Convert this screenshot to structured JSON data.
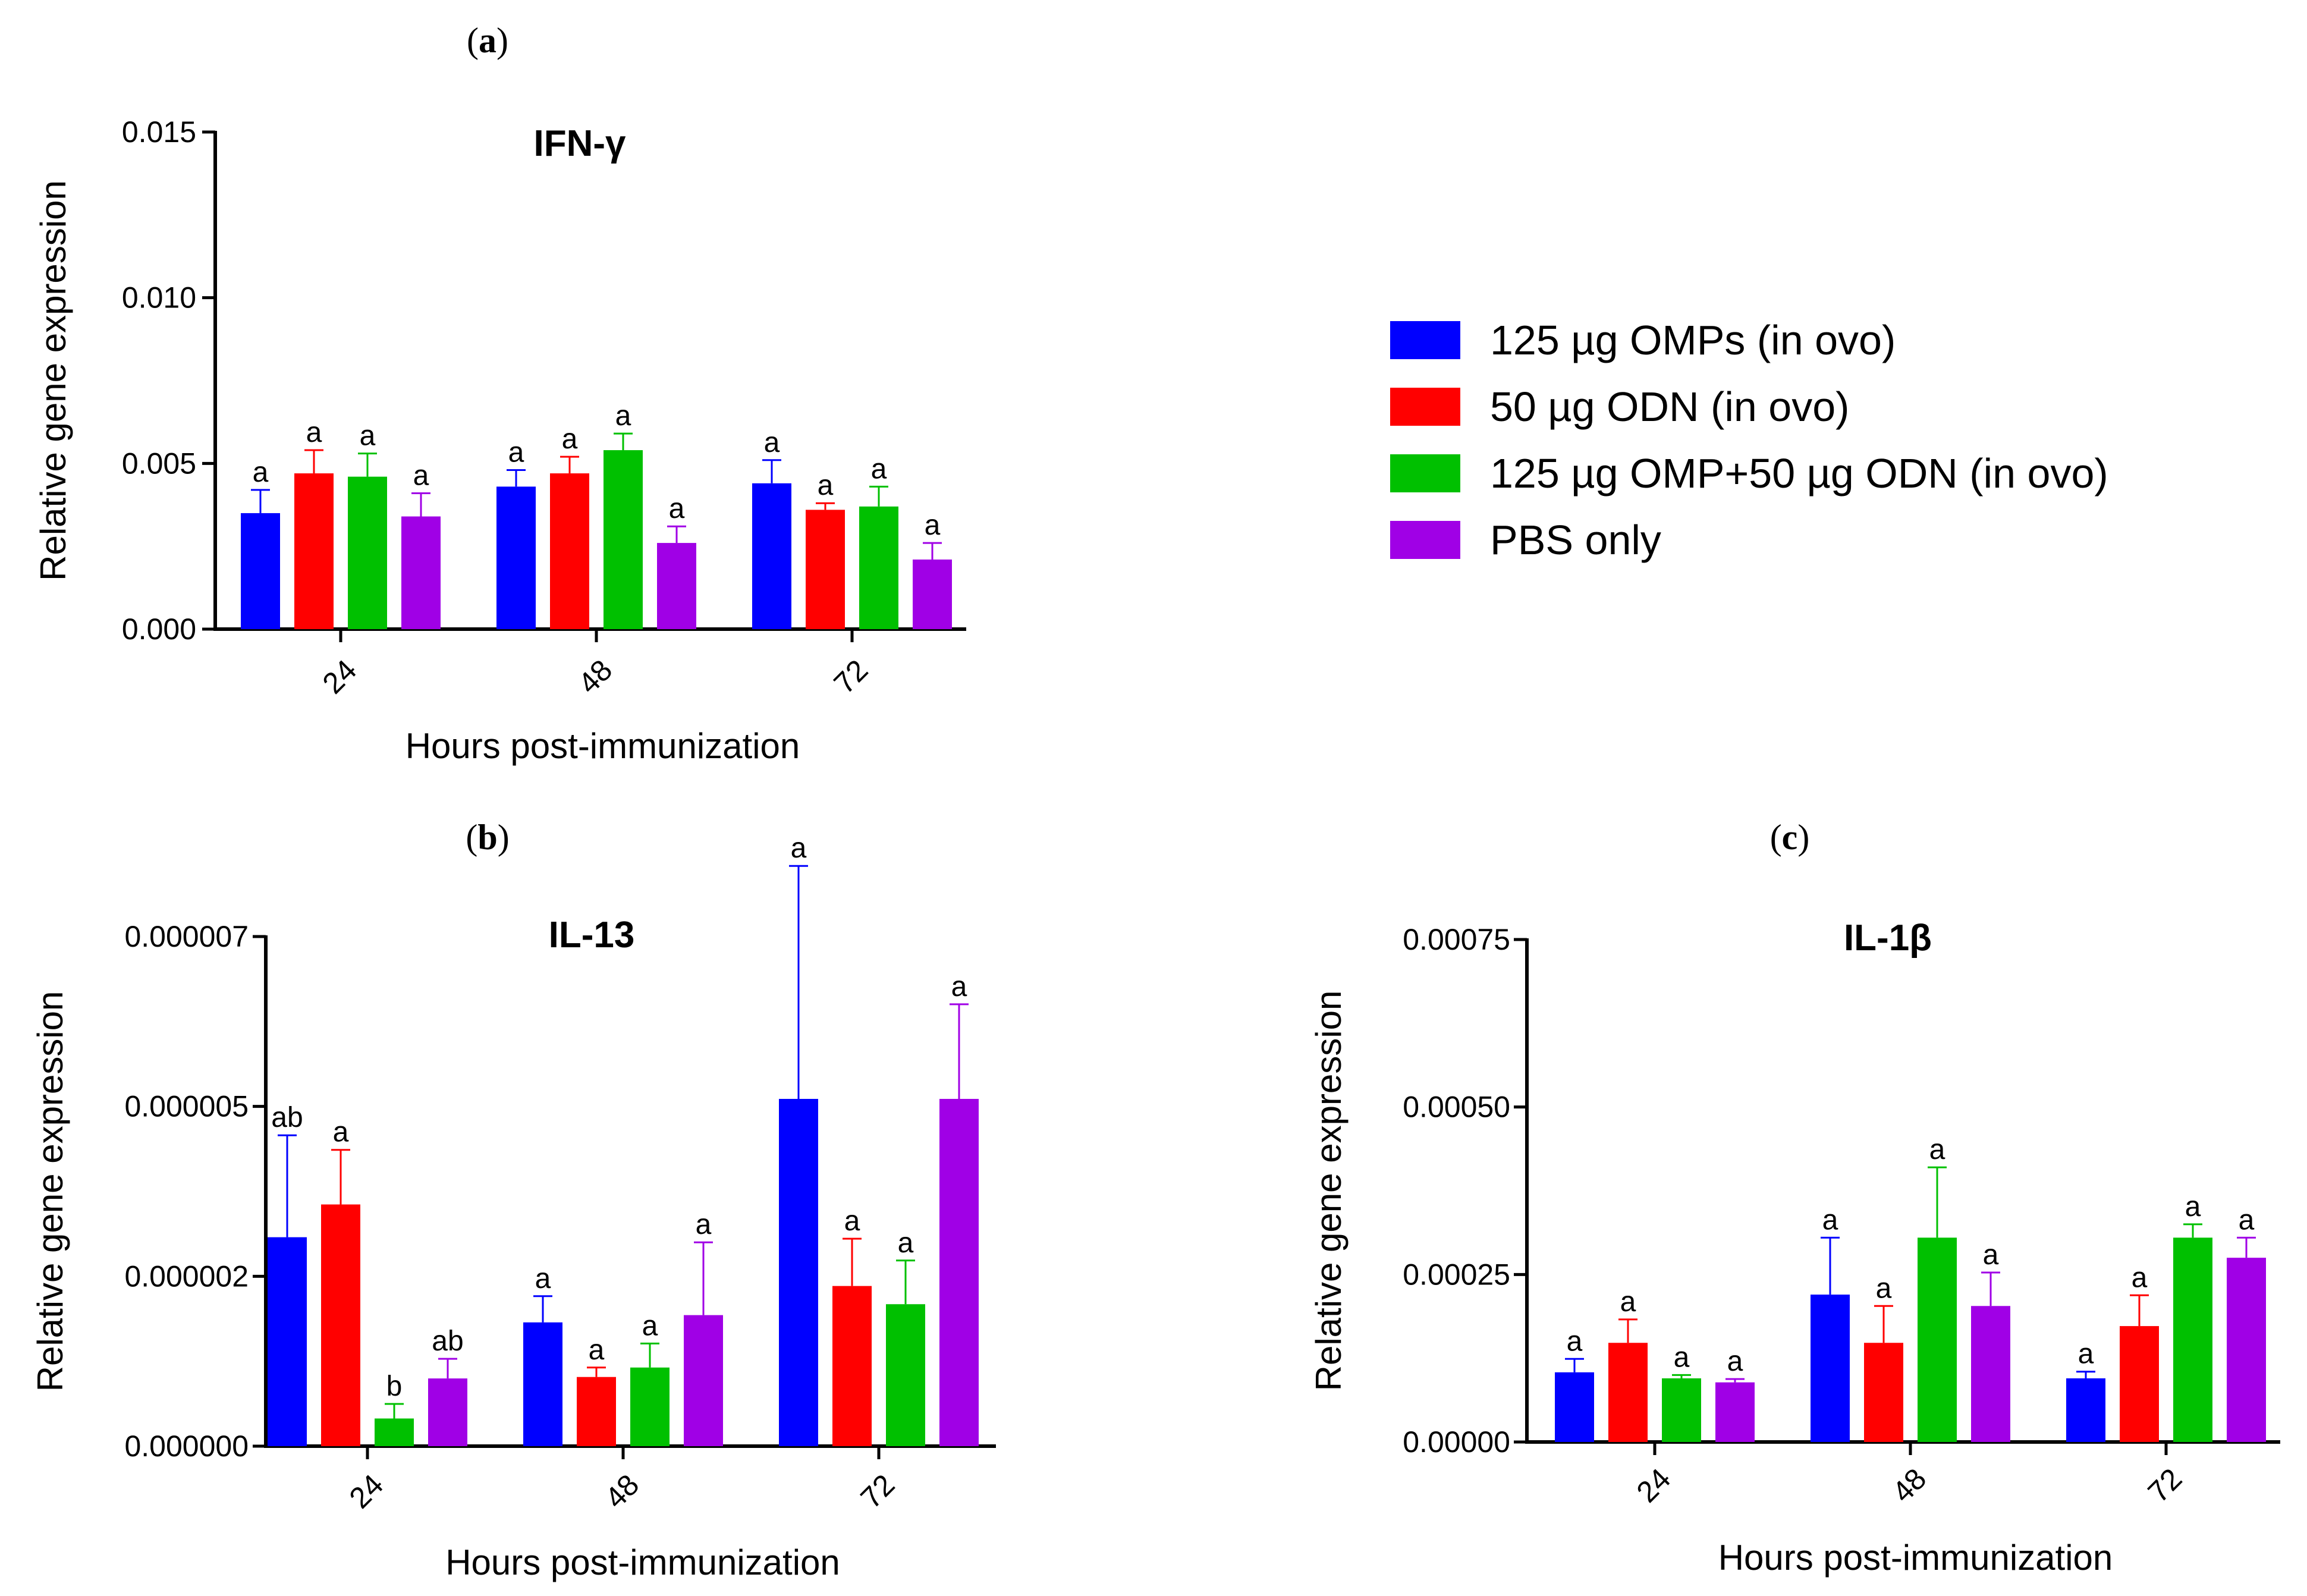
{
  "legend": [
    {
      "label": "125 µg OMPs (in ovo)",
      "color": "#0000ff"
    },
    {
      "label": "50 µg ODN (in ovo)",
      "color": "#ff0000"
    },
    {
      "label": "125 µg OMP+50 µg ODN (in ovo)",
      "color": "#00c000"
    },
    {
      "label": "PBS only",
      "color": "#a000e6"
    }
  ],
  "chart_data": [
    {
      "panel": "a",
      "type": "bar",
      "title": "IFN-γ",
      "xlabel": "Hours post-immunization",
      "ylabel": "Relative gene expression",
      "categories": [
        "24",
        "48",
        "72"
      ],
      "ylim": [
        0,
        0.015
      ],
      "yticks": [
        "0.000",
        "0.005",
        "0.010",
        "0.015"
      ],
      "series": [
        {
          "values": [
            0.0035,
            0.0043,
            0.0044
          ],
          "errors": [
            0.0007,
            0.0005,
            0.0007
          ],
          "labels": [
            "a",
            "a",
            "a"
          ]
        },
        {
          "values": [
            0.0047,
            0.0047,
            0.0036
          ],
          "errors": [
            0.0007,
            0.0005,
            0.0002
          ],
          "labels": [
            "a",
            "a",
            "a"
          ]
        },
        {
          "values": [
            0.0046,
            0.0054,
            0.0037
          ],
          "errors": [
            0.0007,
            0.0005,
            0.0006
          ],
          "labels": [
            "a",
            "a",
            "a"
          ]
        },
        {
          "values": [
            0.0034,
            0.0026,
            0.0021
          ],
          "errors": [
            0.0007,
            0.0005,
            0.0005
          ],
          "labels": [
            "a",
            "a",
            "a"
          ]
        }
      ]
    },
    {
      "panel": "b",
      "type": "bar",
      "title": "IL-13",
      "xlabel": "Hours post-immunization",
      "ylabel": "Relative gene expression",
      "categories": [
        "24",
        "48",
        "72"
      ],
      "ylim": [
        0,
        7e-06
      ],
      "yticks": [
        "0.000000",
        "0.000002",
        "0.000005",
        "0.000007"
      ],
      "series": [
        {
          "values": [
            2.87e-06,
            1.7e-06,
            4.77e-06
          ],
          "errors": [
            1.4e-06,
            3.6e-07,
            3.2e-06
          ],
          "labels": [
            "ab",
            "a",
            "a"
          ]
        },
        {
          "values": [
            3.32e-06,
            9.5e-07,
            2.2e-06
          ],
          "errors": [
            7.5e-07,
            1.3e-07,
            6.5e-07
          ],
          "labels": [
            "a",
            "a",
            "a"
          ]
        },
        {
          "values": [
            3.8e-07,
            1.08e-06,
            1.95e-06
          ],
          "errors": [
            2e-07,
            3.3e-07,
            6e-07
          ],
          "labels": [
            "b",
            "a",
            "a"
          ]
        },
        {
          "values": [
            9.3e-07,
            1.8e-06,
            4.77e-06
          ],
          "errors": [
            2.7e-07,
            1e-06,
            1.3e-06
          ],
          "labels": [
            "ab",
            "a",
            "a"
          ]
        }
      ]
    },
    {
      "panel": "c",
      "type": "bar",
      "title": "IL-1β",
      "xlabel": "Hours post-immunization",
      "ylabel": "Relative gene expression",
      "categories": [
        "24",
        "48",
        "72"
      ],
      "ylim": [
        0,
        0.00075
      ],
      "yticks": [
        "0.00000",
        "0.00025",
        "0.00050",
        "0.00075"
      ],
      "series": [
        {
          "values": [
            0.000104,
            0.00022,
            9.5e-05
          ],
          "errors": [
            2e-05,
            8.5e-05,
            1e-05
          ],
          "labels": [
            "a",
            "a",
            "a"
          ]
        },
        {
          "values": [
            0.000148,
            0.000148,
            0.000173
          ],
          "errors": [
            3.5e-05,
            5.5e-05,
            4.6e-05
          ],
          "labels": [
            "a",
            "a",
            "a"
          ]
        },
        {
          "values": [
            9.5e-05,
            0.000305,
            0.000305
          ],
          "errors": [
            5e-06,
            0.000105,
            2e-05
          ],
          "labels": [
            "a",
            "a",
            "a"
          ]
        },
        {
          "values": [
            8.9e-05,
            0.000203,
            0.000275
          ],
          "errors": [
            5e-06,
            5e-05,
            3e-05
          ],
          "labels": [
            "a",
            "a",
            "a"
          ]
        }
      ]
    }
  ]
}
